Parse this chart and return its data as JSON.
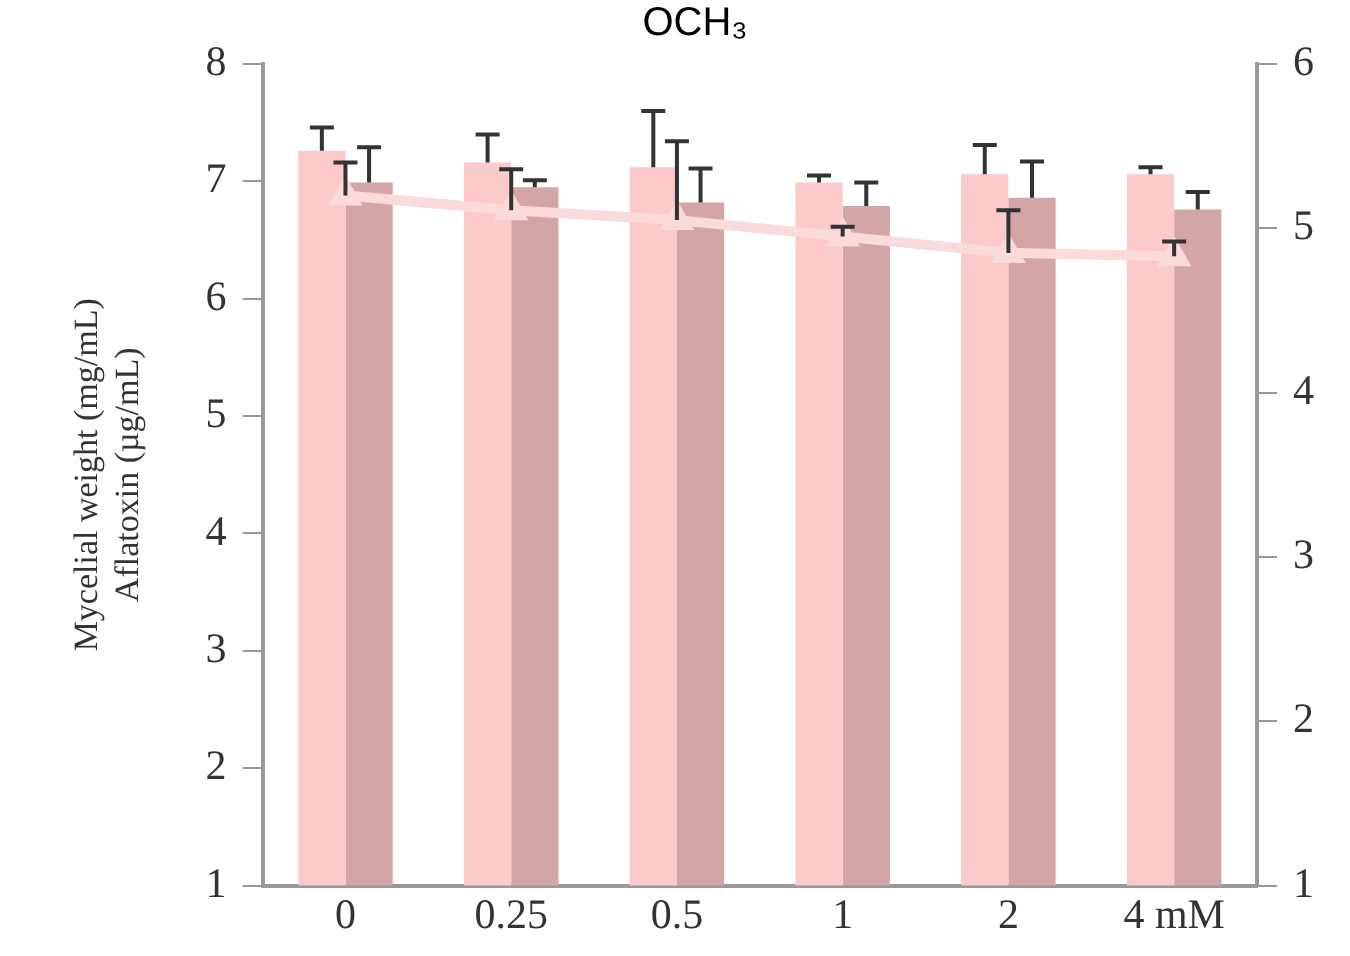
{
  "chart_data": {
    "type": "bar",
    "title": "OCH₃",
    "ylabel": "Mycelial weight (mg/mL)\nAflatoxin (µg/mL)",
    "categories": [
      "0",
      "0.25",
      "0.5",
      "1",
      "2",
      "4 mM"
    ],
    "series": [
      {
        "color": "#fdcacb",
        "values": [
          7.26,
          7.16,
          7.12,
          6.99,
          7.06,
          7.06
        ],
        "errors": [
          [
            7.26,
            7.46
          ],
          [
            7.16,
            7.4
          ],
          [
            7.12,
            7.6
          ],
          [
            6.99,
            7.05
          ],
          [
            7.06,
            7.31
          ],
          [
            7.06,
            7.12
          ]
        ]
      },
      {
        "color": "#d4a5a7",
        "values": [
          6.99,
          6.95,
          6.82,
          6.79,
          6.86,
          6.76
        ],
        "errors": [
          [
            6.99,
            7.29
          ],
          [
            6.95,
            7.01
          ],
          [
            6.82,
            7.11
          ],
          [
            6.79,
            6.99
          ],
          [
            6.86,
            7.17
          ],
          [
            6.76,
            6.91
          ]
        ]
      },
      {
        "type": "line",
        "axis": "y2",
        "color": "#fadadb",
        "marker": "triangle",
        "values": [
          5.2,
          5.11,
          5.05,
          4.95,
          4.85,
          4.83
        ],
        "errors": [
          [
            5.2,
            5.4
          ],
          [
            5.11,
            5.36
          ],
          [
            5.05,
            5.53
          ],
          [
            4.95,
            5.01
          ],
          [
            4.85,
            5.11
          ],
          [
            4.83,
            4.92
          ]
        ]
      }
    ],
    "ylim": [
      1,
      8
    ],
    "yticks": [
      1,
      2,
      3,
      4,
      5,
      6,
      7,
      8
    ],
    "y2lim": [
      1,
      6
    ],
    "y2ticks": [
      1,
      2,
      3,
      4,
      5,
      6
    ],
    "grid": false,
    "legend": false
  }
}
